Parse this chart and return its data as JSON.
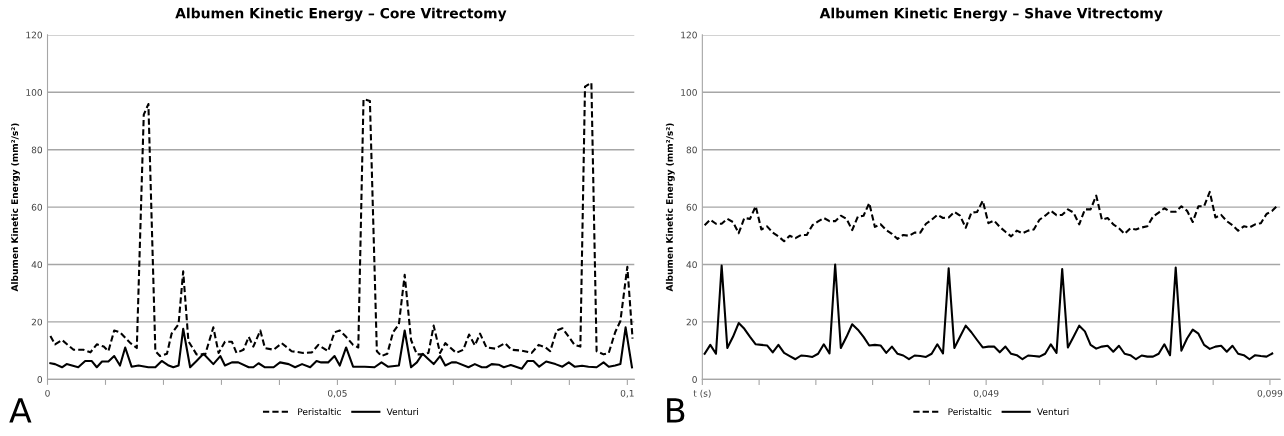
{
  "chart_data": [
    {
      "type": "line",
      "title": "Albumen Kinetic Energy – Core Vitrectomy",
      "ylabel": "Albumen Kinetic Energy (mm²/s²)",
      "annotations": [
        "A"
      ],
      "xlim": [
        0,
        0.1012
      ],
      "xticks": [
        0,
        {
          "value": 0.01,
          "label": null
        },
        {
          "value": 0.02,
          "label": null
        },
        {
          "value": 0.03,
          "label": null
        },
        {
          "value": 0.04,
          "label": null
        },
        {
          "value": 0.05,
          "label": "0,05"
        },
        {
          "value": 0.06,
          "label": null
        },
        {
          "value": 0.07,
          "label": null
        },
        {
          "value": 0.08,
          "label": null
        },
        {
          "value": 0.09,
          "label": null
        },
        {
          "value": 0.1,
          "label": "0,1"
        }
      ],
      "ylim": [
        0,
        120
      ],
      "yticks": [
        0,
        20,
        40,
        60,
        80,
        100,
        120
      ],
      "grid": "y",
      "legend": "bottom",
      "marker": "none",
      "series": [
        {
          "name": "Peristaltic",
          "color": "#000000",
          "line_style": "dashed",
          "x": [
            0.0005,
            0.0013,
            0.0025,
            0.0045,
            0.0062,
            0.0074,
            0.0085,
            0.0097,
            0.0105,
            0.0115,
            0.0125,
            0.0143,
            0.0154,
            0.0166,
            0.0174,
            0.0186,
            0.0194,
            0.0206,
            0.0214,
            0.0226,
            0.0234,
            0.0243,
            0.0257,
            0.0272,
            0.0286,
            0.0295,
            0.0306,
            0.0318,
            0.0326,
            0.0338,
            0.0347,
            0.0355,
            0.0367,
            0.0375,
            0.039,
            0.0404,
            0.0421,
            0.0441,
            0.0456,
            0.0467,
            0.0484,
            0.0495,
            0.0504,
            0.0515,
            0.0527,
            0.0536,
            0.0545,
            0.0556,
            0.0568,
            0.0576,
            0.0586,
            0.0596,
            0.0606,
            0.0616,
            0.0627,
            0.0637,
            0.0648,
            0.0657,
            0.0666,
            0.0677,
            0.0686,
            0.0705,
            0.0717,
            0.0727,
            0.0737,
            0.0746,
            0.0757,
            0.0772,
            0.0789,
            0.08,
            0.0818,
            0.0835,
            0.0847,
            0.0859,
            0.0867,
            0.0878,
            0.0888,
            0.0899,
            0.0909,
            0.0919,
            0.0927,
            0.0938,
            0.0947,
            0.0959,
            0.0968,
            0.0979,
            0.0988,
            0.1,
            0.1009
          ],
          "values": [
            15.1,
            12.2,
            13.7,
            10.3,
            10.3,
            9.4,
            12.2,
            11.4,
            9.8,
            17,
            16.4,
            12.6,
            10.9,
            92.2,
            95.9,
            9.8,
            8.1,
            8.9,
            15.9,
            19.2,
            37.6,
            13.3,
            8.7,
            8.7,
            18.1,
            9.2,
            13.1,
            13.1,
            9.2,
            10.3,
            14.8,
            11.4,
            17,
            10.9,
            10.3,
            12.6,
            9.8,
            9.2,
            9.4,
            12,
            9.8,
            16.4,
            17,
            14.8,
            12,
            11.1,
            97.6,
            97,
            9.8,
            8.1,
            8.9,
            16.4,
            19.2,
            36.4,
            13.7,
            8.7,
            8.7,
            9.2,
            18.7,
            9.2,
            12.6,
            9.2,
            10.3,
            15.6,
            11.8,
            15.9,
            11.1,
            10.7,
            12.6,
            10.3,
            10,
            9.2,
            12,
            11.1,
            9.8,
            17,
            17.8,
            14.8,
            12,
            11.4,
            102,
            103.3,
            9.8,
            8.7,
            9.2,
            16.4,
            20.3,
            39.2,
            14.2
          ]
        },
        {
          "name": "Venturi",
          "color": "#000000",
          "line_style": "solid",
          "x": [
            0.0005,
            0.0013,
            0.0025,
            0.0033,
            0.0053,
            0.0065,
            0.0076,
            0.0085,
            0.0094,
            0.0105,
            0.0115,
            0.0125,
            0.0134,
            0.0145,
            0.0157,
            0.0174,
            0.0186,
            0.0197,
            0.0209,
            0.0217,
            0.0226,
            0.0234,
            0.0246,
            0.0257,
            0.0269,
            0.0286,
            0.0298,
            0.0306,
            0.0318,
            0.0329,
            0.0347,
            0.0355,
            0.0364,
            0.0375,
            0.039,
            0.0401,
            0.0416,
            0.0427,
            0.0439,
            0.0453,
            0.0464,
            0.0472,
            0.0484,
            0.0495,
            0.0504,
            0.0515,
            0.0527,
            0.0547,
            0.0564,
            0.0576,
            0.0587,
            0.0606,
            0.0616,
            0.0627,
            0.0637,
            0.0647,
            0.0657,
            0.0666,
            0.0677,
            0.0686,
            0.0697,
            0.0705,
            0.0726,
            0.0737,
            0.0749,
            0.0757,
            0.0766,
            0.0778,
            0.0787,
            0.0799,
            0.0818,
            0.0828,
            0.0838,
            0.0848,
            0.086,
            0.0876,
            0.0888,
            0.0899,
            0.0909,
            0.0922,
            0.0933,
            0.0947,
            0.0959,
            0.0968,
            0.0979,
            0.0988,
            0.0997,
            0.1008
          ],
          "values": [
            5.6,
            5.3,
            4.2,
            5.3,
            4.2,
            6.4,
            6.4,
            4.2,
            6.2,
            6.2,
            8.1,
            4.8,
            11.1,
            4.4,
            4.8,
            4.2,
            4.2,
            6.4,
            4.8,
            4.2,
            4.8,
            17.6,
            4.2,
            6.4,
            8.9,
            5.3,
            8.1,
            4.8,
            5.9,
            5.9,
            4.2,
            4.2,
            5.6,
            4.2,
            4.2,
            5.9,
            5.3,
            4.2,
            5.3,
            4.2,
            6.4,
            5.9,
            5.9,
            8.1,
            4.8,
            11.1,
            4.4,
            4.4,
            4.2,
            5.9,
            4.4,
            4.8,
            17,
            4.2,
            5.9,
            8.9,
            7,
            5.3,
            8.1,
            4.8,
            5.9,
            5.9,
            4.2,
            5.3,
            4.2,
            4.2,
            5.3,
            5.1,
            4.2,
            5,
            3.7,
            6.4,
            6.4,
            4.4,
            6.2,
            5.3,
            4.4,
            5.9,
            4.4,
            4.7,
            4.4,
            4.2,
            5.9,
            4.4,
            4.8,
            5.3,
            18.1,
            4.2
          ]
        }
      ]
    },
    {
      "type": "line",
      "title": "Albumen Kinetic Energy – Shave Vitrectomy",
      "ylabel": "Albumen Kinetic Energy (mm²/s²)",
      "annotations": [
        "B"
      ],
      "xlim": [
        -0.001,
        0.1008
      ],
      "xticks": [
        {
          "value": -0.001,
          "label": "t (s)"
        },
        {
          "value": 0.009,
          "label": null
        },
        {
          "value": 0.019,
          "label": null
        },
        {
          "value": 0.029,
          "label": null
        },
        {
          "value": 0.039,
          "label": null
        },
        {
          "value": 0.049,
          "label": "0,049"
        },
        {
          "value": 0.059,
          "label": null
        },
        {
          "value": 0.069,
          "label": null
        },
        {
          "value": 0.079,
          "label": null
        },
        {
          "value": 0.089,
          "label": null
        },
        {
          "value": 0.099,
          "label": "0,099"
        }
      ],
      "ylim": [
        0,
        120
      ],
      "yticks": [
        0,
        20,
        40,
        60,
        80,
        100,
        120
      ],
      "grid": "y",
      "legend": "bottom",
      "marker": "none",
      "x": [
        -0.0006,
        0.0004,
        0.0014,
        0.0024,
        0.0034,
        0.0044,
        0.0054,
        0.0064,
        0.0074,
        0.0084,
        0.0094,
        0.0104,
        0.0114,
        0.0124,
        0.0134,
        0.0144,
        0.0154,
        0.0164,
        0.0174,
        0.0184,
        0.0194,
        0.0204,
        0.0214,
        0.0224,
        0.0234,
        0.0244,
        0.0254,
        0.0264,
        0.0274,
        0.0284,
        0.0294,
        0.0304,
        0.0314,
        0.0324,
        0.0334,
        0.0344,
        0.0354,
        0.0364,
        0.0374,
        0.0384,
        0.0394,
        0.0404,
        0.0414,
        0.0424,
        0.0434,
        0.0444,
        0.0454,
        0.0464,
        0.0474,
        0.0484,
        0.0494,
        0.0504,
        0.0514,
        0.0524,
        0.0534,
        0.0544,
        0.0554,
        0.0564,
        0.0574,
        0.0584,
        0.0594,
        0.0604,
        0.0614,
        0.0624,
        0.0634,
        0.0644,
        0.0654,
        0.0664,
        0.0674,
        0.0684,
        0.0694,
        0.0704,
        0.0714,
        0.0724,
        0.0734,
        0.0744,
        0.0754,
        0.0764,
        0.0774,
        0.0784,
        0.0794,
        0.0804,
        0.0814,
        0.0824,
        0.0834,
        0.0844,
        0.0854,
        0.0864,
        0.0874,
        0.0884,
        0.0894,
        0.0904,
        0.0914,
        0.0924,
        0.0934,
        0.0944,
        0.0954,
        0.0964,
        0.0974,
        0.0984,
        0.0994,
        0.1004
      ],
      "series": [
        {
          "name": "Peristaltic",
          "color": "#000000",
          "line_style": "dashed",
          "values": [
            53.7,
            55.6,
            54.2,
            54.2,
            55.9,
            54.8,
            50.9,
            56.2,
            55.9,
            60.3,
            52.2,
            53.3,
            51.1,
            49.8,
            48.1,
            50,
            49.2,
            50.3,
            50.3,
            53.7,
            55,
            56.2,
            55.1,
            55.1,
            57,
            55.9,
            52,
            56.7,
            57,
            61.4,
            53.1,
            54,
            52,
            50.7,
            48.9,
            50.3,
            50,
            51.1,
            51.1,
            54.2,
            55.6,
            57.3,
            56.2,
            56.4,
            58.3,
            57,
            52.8,
            58.1,
            58.3,
            62.2,
            54.4,
            55.3,
            53.1,
            51.4,
            49.8,
            51.8,
            50.9,
            51.8,
            52.2,
            55.6,
            57,
            58.7,
            57.2,
            57.3,
            59.2,
            58.1,
            54,
            59.2,
            59.2,
            64,
            55.6,
            56.2,
            54,
            52.6,
            50.7,
            52.6,
            52.2,
            52.9,
            53.3,
            56.7,
            58.1,
            59.6,
            58.4,
            58.4,
            60.3,
            58.7,
            54.8,
            60.3,
            60.3,
            65.3,
            56.4,
            57.3,
            55.1,
            53.7,
            51.8,
            53.3,
            52.9,
            54,
            54.4,
            57.6,
            58.7,
            60.7
          ]
        },
        {
          "name": "Venturi",
          "color": "#000000",
          "line_style": "solid",
          "values": [
            8.9,
            12,
            8.9,
            39.6,
            10.9,
            14.8,
            19.6,
            17.6,
            14.8,
            12.2,
            12,
            11.8,
            9.4,
            12,
            9.2,
            8.1,
            7,
            8.3,
            8.1,
            7.8,
            8.9,
            12.2,
            9,
            40,
            10.9,
            14.8,
            19.2,
            17.3,
            14.8,
            11.8,
            12,
            11.8,
            9.2,
            11.4,
            8.9,
            8.3,
            7,
            8.3,
            8.1,
            7.8,
            8.9,
            12.2,
            9,
            38.7,
            10.9,
            14.8,
            18.7,
            16.4,
            13.7,
            11.1,
            11.4,
            11.4,
            9.4,
            11.4,
            8.9,
            8.4,
            7,
            8.3,
            8.1,
            7.9,
            8.9,
            12.2,
            9.2,
            38.4,
            11.1,
            14.8,
            18.7,
            16.7,
            12,
            10.7,
            11.4,
            11.7,
            9.6,
            11.7,
            8.9,
            8.4,
            7,
            8.3,
            7.9,
            7.9,
            8.9,
            12.2,
            8.4,
            38.9,
            10,
            14.2,
            17.3,
            15.9,
            12,
            10.6,
            11.4,
            11.7,
            9.6,
            11.7,
            8.9,
            8.4,
            7,
            8.4,
            8.1,
            7.9,
            9,
            null
          ]
        }
      ]
    }
  ]
}
